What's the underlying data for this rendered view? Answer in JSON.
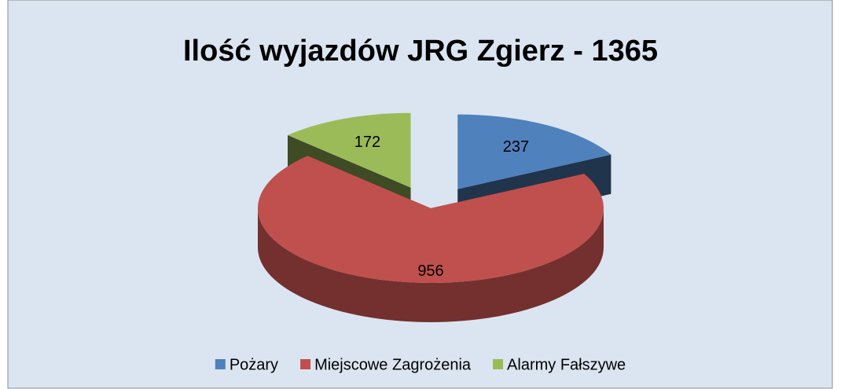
{
  "chart_data": {
    "type": "pie",
    "title": "Ilość wyjazdów JRG Zgierz - 1365",
    "categories": [
      "Pożary",
      "Miejscowe Zagrożenia",
      "Alarmy Fałszywe"
    ],
    "values": [
      237,
      956,
      172
    ],
    "colors": [
      "#4f81bd",
      "#c0504d",
      "#9bbb59"
    ],
    "legend": "bottom"
  }
}
